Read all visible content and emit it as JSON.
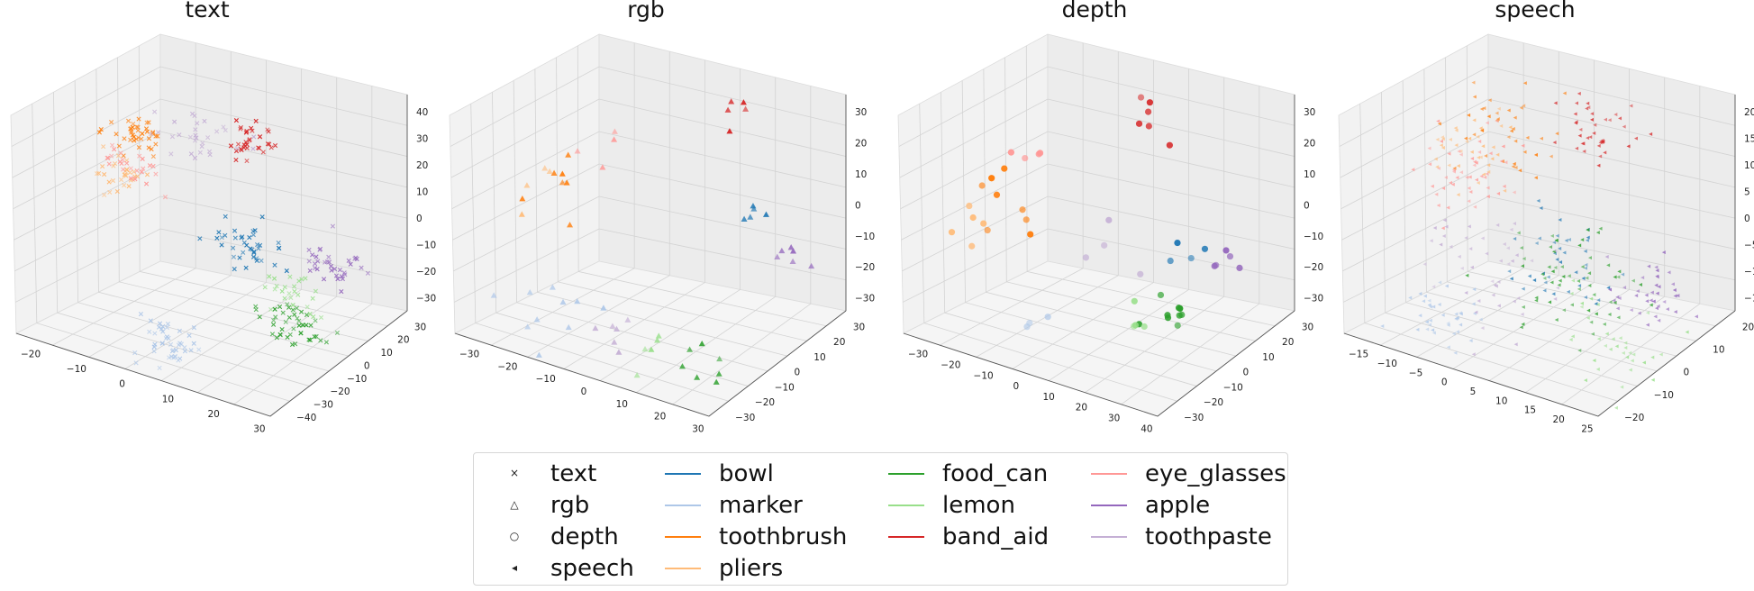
{
  "panels": [
    {
      "title": "text",
      "z_ticks": [
        "40",
        "30",
        "20",
        "10",
        "0",
        "−10",
        "−20",
        "−30"
      ],
      "x_ticks": [
        "−20",
        "−10",
        "0",
        "10",
        "20",
        "30"
      ],
      "y_ticks": [
        "30",
        "20",
        "10",
        "0",
        "−10",
        "−20",
        "−30",
        "−40"
      ]
    },
    {
      "title": "rgb",
      "z_ticks": [
        "30",
        "20",
        "10",
        "0",
        "−10",
        "−20",
        "−30"
      ],
      "x_ticks": [
        "−30",
        "−20",
        "−10",
        "0",
        "10",
        "20",
        "30"
      ],
      "y_ticks": [
        "30",
        "20",
        "10",
        "0",
        "−10",
        "−20",
        "−30"
      ]
    },
    {
      "title": "depth",
      "z_ticks": [
        "30",
        "20",
        "10",
        "0",
        "−10",
        "−20",
        "−30"
      ],
      "x_ticks": [
        "−30",
        "−20",
        "−10",
        "0",
        "10",
        "20",
        "30",
        "40"
      ],
      "y_ticks": [
        "30",
        "20",
        "10",
        "0",
        "−10",
        "−20",
        "−30"
      ]
    },
    {
      "title": "speech",
      "z_ticks": [
        "20",
        "15",
        "10",
        "5",
        "0",
        "−5",
        "−10",
        "−15"
      ],
      "x_ticks": [
        "−15",
        "−10",
        "−5",
        "0",
        "5",
        "10",
        "15",
        "20",
        "25"
      ],
      "y_ticks": [
        "20",
        "10",
        "0",
        "−10",
        "−20"
      ]
    }
  ],
  "legend": {
    "markers": [
      {
        "label": "text",
        "glyph": "×"
      },
      {
        "label": "rgb",
        "glyph": "△"
      },
      {
        "label": "depth",
        "glyph": "○"
      },
      {
        "label": "speech",
        "glyph": "◂"
      }
    ],
    "classes": [
      {
        "label": "bowl",
        "color": "#1f77b4"
      },
      {
        "label": "marker",
        "color": "#aec7e8"
      },
      {
        "label": "toothbrush",
        "color": "#ff7f0e"
      },
      {
        "label": "pliers",
        "color": "#ffbb78"
      },
      {
        "label": "food_can",
        "color": "#2ca02c"
      },
      {
        "label": "lemon",
        "color": "#98df8a"
      },
      {
        "label": "band_aid",
        "color": "#d62728"
      },
      {
        "label": "eye_glasses",
        "color": "#ff9896"
      },
      {
        "label": "apple",
        "color": "#9467bd"
      },
      {
        "label": "toothpaste",
        "color": "#c5b0d5"
      }
    ]
  },
  "chart_data": [
    {
      "type": "scatter",
      "title": "text",
      "dimensions": 3,
      "marker": "x",
      "xlim": [
        -25,
        38
      ],
      "ylim": [
        -40,
        35
      ],
      "zlim": [
        -35,
        42
      ],
      "clusters": [
        {
          "name": "bowl",
          "center": [
            12,
            0,
            0
          ],
          "spread": 4,
          "n": 40
        },
        {
          "name": "marker",
          "center": [
            8,
            -30,
            -28
          ],
          "spread": 4,
          "n": 45
        },
        {
          "name": "toothbrush",
          "center": [
            -18,
            8,
            22
          ],
          "spread": 3,
          "n": 40
        },
        {
          "name": "pliers",
          "center": [
            -20,
            5,
            8
          ],
          "spread": 3,
          "n": 30
        },
        {
          "name": "food_can",
          "center": [
            28,
            -10,
            -18
          ],
          "spread": 4,
          "n": 45
        },
        {
          "name": "lemon",
          "center": [
            25,
            -5,
            -10
          ],
          "spread": 4,
          "n": 25
        },
        {
          "name": "band_aid",
          "center": [
            5,
            18,
            28
          ],
          "spread": 3,
          "n": 35
        },
        {
          "name": "eye_glasses",
          "center": [
            -15,
            0,
            15
          ],
          "spread": 3,
          "n": 25
        },
        {
          "name": "apple",
          "center": [
            30,
            8,
            -2
          ],
          "spread": 4,
          "n": 35
        },
        {
          "name": "toothpaste",
          "center": [
            -5,
            15,
            25
          ],
          "spread": 4,
          "n": 30
        }
      ]
    },
    {
      "type": "scatter",
      "title": "rgb",
      "dimensions": 3,
      "marker": "triangle",
      "xlim": [
        -35,
        38
      ],
      "ylim": [
        -32,
        32
      ],
      "zlim": [
        -32,
        32
      ],
      "clusters": [
        {
          "name": "bowl",
          "center": [
            20,
            18,
            5
          ],
          "spread": 2,
          "n": 5
        },
        {
          "name": "marker",
          "center": [
            -15,
            -20,
            -25
          ],
          "spread": 6,
          "n": 10
        },
        {
          "name": "toothbrush",
          "center": [
            -25,
            0,
            5
          ],
          "spread": 4,
          "n": 7
        },
        {
          "name": "pliers",
          "center": [
            -28,
            -5,
            0
          ],
          "spread": 4,
          "n": 4
        },
        {
          "name": "food_can",
          "center": [
            25,
            -10,
            -25
          ],
          "spread": 4,
          "n": 7
        },
        {
          "name": "lemon",
          "center": [
            10,
            -15,
            -25
          ],
          "spread": 4,
          "n": 5
        },
        {
          "name": "band_aid",
          "center": [
            10,
            25,
            28
          ],
          "spread": 4,
          "n": 5
        },
        {
          "name": "eye_glasses",
          "center": [
            -15,
            10,
            15
          ],
          "spread": 5,
          "n": 4
        },
        {
          "name": "apple",
          "center": [
            30,
            15,
            -5
          ],
          "spread": 3,
          "n": 6
        },
        {
          "name": "toothpaste",
          "center": [
            0,
            -20,
            -25
          ],
          "spread": 5,
          "n": 6
        }
      ]
    },
    {
      "type": "scatter",
      "title": "depth",
      "dimensions": 3,
      "marker": "circle",
      "xlim": [
        -35,
        40
      ],
      "ylim": [
        -35,
        32
      ],
      "zlim": [
        -32,
        35
      ],
      "clusters": [
        {
          "name": "bowl",
          "center": [
            22,
            10,
            0
          ],
          "spread": 3,
          "n": 4
        },
        {
          "name": "marker",
          "center": [
            -5,
            -25,
            -20
          ],
          "spread": 4,
          "n": 3
        },
        {
          "name": "toothbrush",
          "center": [
            -20,
            -5,
            0
          ],
          "spread": 6,
          "n": 8
        },
        {
          "name": "pliers",
          "center": [
            -25,
            -10,
            -5
          ],
          "spread": 5,
          "n": 5
        },
        {
          "name": "food_can",
          "center": [
            25,
            -5,
            -15
          ],
          "spread": 3,
          "n": 9
        },
        {
          "name": "lemon",
          "center": [
            15,
            -10,
            -20
          ],
          "spread": 4,
          "n": 4
        },
        {
          "name": "band_aid",
          "center": [
            0,
            25,
            28
          ],
          "spread": 5,
          "n": 6
        },
        {
          "name": "eye_glasses",
          "center": [
            -25,
            10,
            10
          ],
          "spread": 5,
          "n": 4
        },
        {
          "name": "apple",
          "center": [
            30,
            10,
            -5
          ],
          "spread": 3,
          "n": 5
        },
        {
          "name": "toothpaste",
          "center": [
            0,
            5,
            -5
          ],
          "spread": 6,
          "n": 4
        }
      ]
    },
    {
      "type": "scatter",
      "title": "speech",
      "dimensions": 3,
      "marker": "triangle_left",
      "xlim": [
        -17,
        27
      ],
      "ylim": [
        -26,
        22
      ],
      "zlim": [
        -17,
        21
      ],
      "clusters": [
        {
          "name": "bowl",
          "center": [
            8,
            0,
            -3
          ],
          "spread": 4,
          "n": 40
        },
        {
          "name": "marker",
          "center": [
            -5,
            -15,
            -14
          ],
          "spread": 3,
          "n": 40
        },
        {
          "name": "toothbrush",
          "center": [
            -8,
            10,
            12
          ],
          "spread": 4,
          "n": 40
        },
        {
          "name": "pliers",
          "center": [
            -12,
            5,
            8
          ],
          "spread": 3,
          "n": 35
        },
        {
          "name": "food_can",
          "center": [
            10,
            0,
            -5
          ],
          "spread": 5,
          "n": 60
        },
        {
          "name": "lemon",
          "center": [
            20,
            -5,
            -12
          ],
          "spread": 4,
          "n": 35
        },
        {
          "name": "band_aid",
          "center": [
            5,
            15,
            15
          ],
          "spread": 3,
          "n": 40
        },
        {
          "name": "eye_glasses",
          "center": [
            -12,
            5,
            5
          ],
          "spread": 4,
          "n": 50
        },
        {
          "name": "apple",
          "center": [
            20,
            5,
            -6
          ],
          "spread": 3,
          "n": 40
        },
        {
          "name": "toothpaste",
          "center": [
            -3,
            -5,
            -8
          ],
          "spread": 5,
          "n": 45
        }
      ]
    }
  ]
}
